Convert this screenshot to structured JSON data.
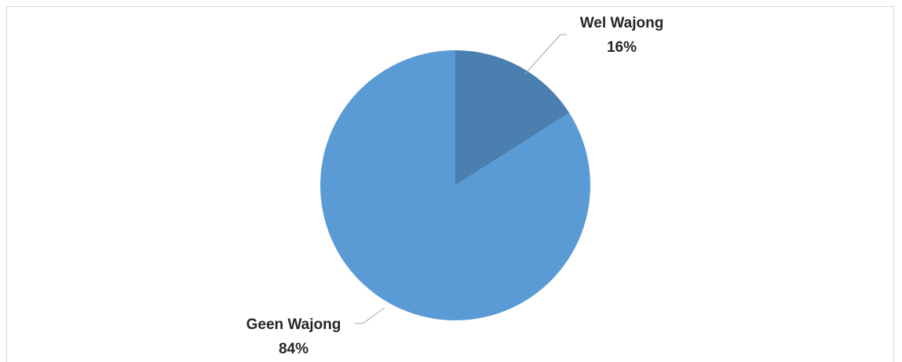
{
  "chart_data": {
    "type": "pie",
    "title": "",
    "start_angle_deg": 0,
    "direction": "clockwise",
    "slices": [
      {
        "name": "Wel Wajong",
        "value": 16,
        "label": "16%",
        "color": "#4a7fb0"
      },
      {
        "name": "Geen Wajong",
        "value": 84,
        "label": "84%",
        "color": "#5b9bd5"
      }
    ],
    "legend": "none",
    "data_labels": "outside-with-leader-lines"
  }
}
